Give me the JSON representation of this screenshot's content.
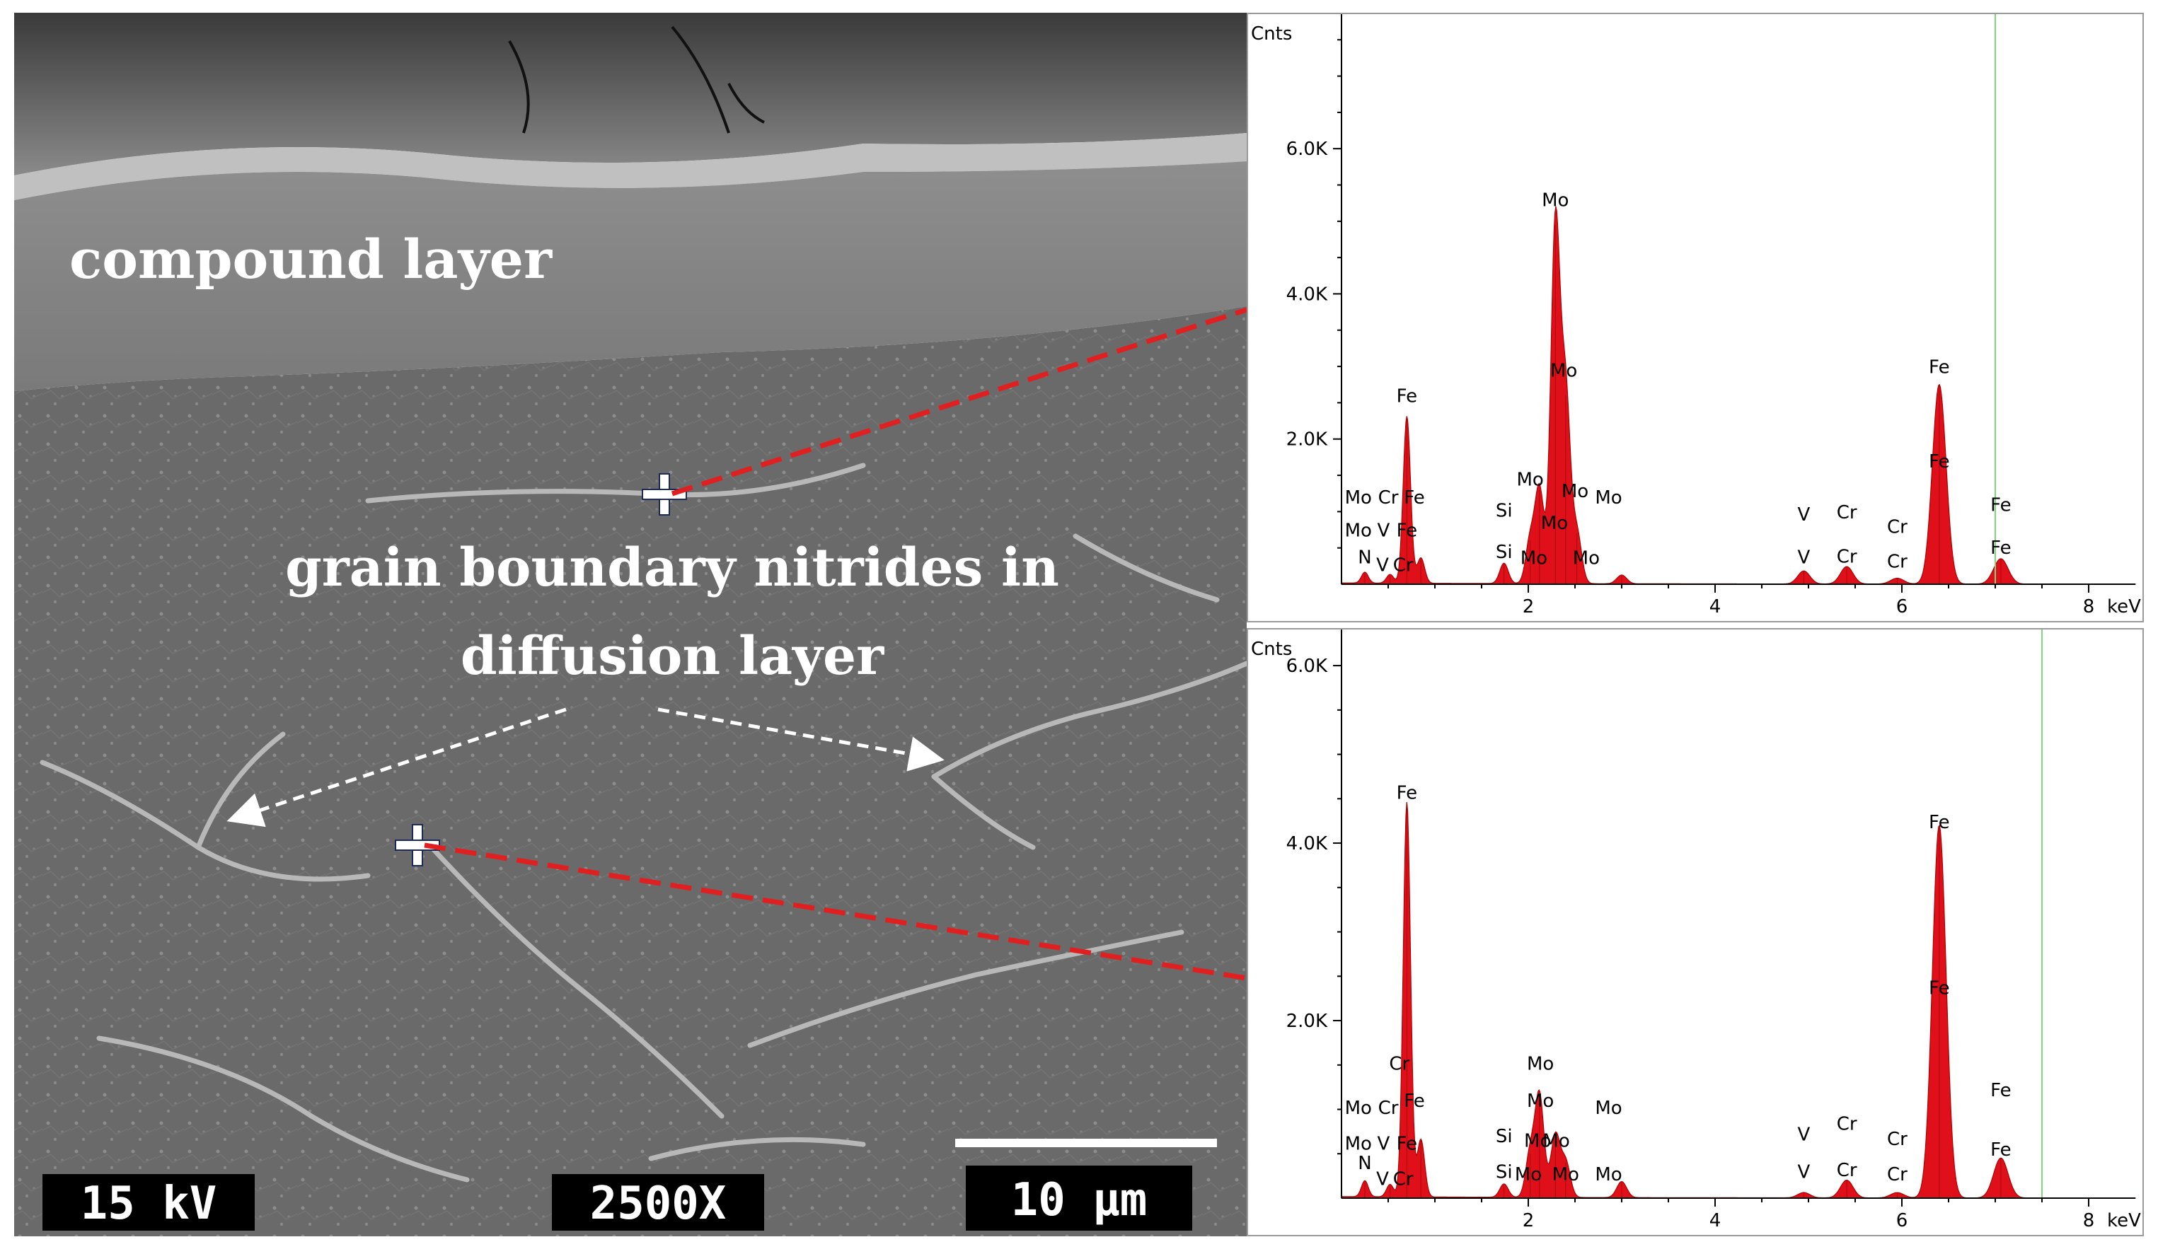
{
  "sem_image": {
    "labels": {
      "compound_layer": "compound layer",
      "grain_boundary_line1": "grain boundary nitrides in",
      "grain_boundary_line2": "diffusion layer"
    },
    "info_bar": {
      "voltage": "15 kV",
      "magnification": "2500X",
      "scale_bar": "10 µm"
    }
  },
  "colors": {
    "spectrum_fill": "#e0101a",
    "marker_line": "#e02020",
    "cursor_line": "#7fd67f",
    "arrow": "#ffffff"
  },
  "chart_data": [
    {
      "type": "area",
      "ylabel": "Cnts",
      "xlabel": "keV",
      "xlim": [
        0,
        8.5
      ],
      "ylim": [
        0,
        7600
      ],
      "x_ticks": [
        "2",
        "4",
        "6",
        "8"
      ],
      "y_ticks": [
        "2.0K",
        "4.0K",
        "6.0K"
      ],
      "cursor_x": 7.0,
      "peaks": [
        {
          "x": 0.25,
          "y": 150
        },
        {
          "x": 0.52,
          "y": 120
        },
        {
          "x": 0.7,
          "y": 2300
        },
        {
          "x": 0.85,
          "y": 350
        },
        {
          "x": 1.74,
          "y": 280
        },
        {
          "x": 2.02,
          "y": 600
        },
        {
          "x": 2.12,
          "y": 1300
        },
        {
          "x": 2.29,
          "y": 4950
        },
        {
          "x": 2.4,
          "y": 2600
        },
        {
          "x": 2.52,
          "y": 700
        },
        {
          "x": 3.0,
          "y": 120
        },
        {
          "x": 4.95,
          "y": 180
        },
        {
          "x": 5.41,
          "y": 240
        },
        {
          "x": 5.95,
          "y": 80
        },
        {
          "x": 6.4,
          "y": 2750
        },
        {
          "x": 7.06,
          "y": 350
        }
      ],
      "peak_labels": [
        {
          "text": "Mo",
          "x": 2.29,
          "y": 5150
        },
        {
          "text": "Mo",
          "x": 2.38,
          "y": 2800
        },
        {
          "text": "Fe",
          "x": 0.7,
          "y": 2450
        },
        {
          "text": "Fe",
          "x": 6.4,
          "y": 2850
        },
        {
          "text": "Fe",
          "x": 6.4,
          "y": 1550
        },
        {
          "text": "Mo",
          "x": 0.18,
          "y": 1050
        },
        {
          "text": "Cr",
          "x": 0.5,
          "y": 1050
        },
        {
          "text": "Fe",
          "x": 0.78,
          "y": 1050
        },
        {
          "text": "Mo",
          "x": 0.18,
          "y": 600
        },
        {
          "text": "V",
          "x": 0.45,
          "y": 600
        },
        {
          "text": "Fe",
          "x": 0.7,
          "y": 600
        },
        {
          "text": "N",
          "x": 0.25,
          "y": 230
        },
        {
          "text": "V",
          "x": 0.44,
          "y": 120
        },
        {
          "text": "Cr",
          "x": 0.66,
          "y": 120
        },
        {
          "text": "Mo",
          "x": 2.02,
          "y": 1300
        },
        {
          "text": "Mo",
          "x": 2.5,
          "y": 1140
        },
        {
          "text": "Mo",
          "x": 2.86,
          "y": 1050
        },
        {
          "text": "Si",
          "x": 1.74,
          "y": 870
        },
        {
          "text": "Mo",
          "x": 2.28,
          "y": 700
        },
        {
          "text": "Si",
          "x": 1.74,
          "y": 300
        },
        {
          "text": "Mo",
          "x": 2.06,
          "y": 220
        },
        {
          "text": "Mo",
          "x": 2.62,
          "y": 220
        },
        {
          "text": "V",
          "x": 4.95,
          "y": 820
        },
        {
          "text": "Cr",
          "x": 5.41,
          "y": 850
        },
        {
          "text": "Cr",
          "x": 5.95,
          "y": 650
        },
        {
          "text": "V",
          "x": 4.95,
          "y": 230
        },
        {
          "text": "Cr",
          "x": 5.41,
          "y": 240
        },
        {
          "text": "Cr",
          "x": 5.95,
          "y": 170
        },
        {
          "text": "Fe",
          "x": 7.06,
          "y": 950
        },
        {
          "text": "Fe",
          "x": 7.06,
          "y": 360
        }
      ]
    },
    {
      "type": "area",
      "ylabel": "Cnts",
      "xlabel": "keV",
      "xlim": [
        0,
        8.5
      ],
      "ylim": [
        0,
        6200
      ],
      "x_ticks": [
        "2",
        "4",
        "6",
        "8"
      ],
      "y_ticks": [
        "2.0K",
        "4.0K",
        "6.0K"
      ],
      "cursor_x": 7.5,
      "peaks": [
        {
          "x": 0.25,
          "y": 180
        },
        {
          "x": 0.52,
          "y": 140
        },
        {
          "x": 0.7,
          "y": 4450
        },
        {
          "x": 0.85,
          "y": 650
        },
        {
          "x": 1.74,
          "y": 150
        },
        {
          "x": 2.02,
          "y": 500
        },
        {
          "x": 2.12,
          "y": 1150
        },
        {
          "x": 2.29,
          "y": 700
        },
        {
          "x": 2.4,
          "y": 400
        },
        {
          "x": 3.0,
          "y": 180
        },
        {
          "x": 4.95,
          "y": 60
        },
        {
          "x": 5.41,
          "y": 200
        },
        {
          "x": 5.95,
          "y": 60
        },
        {
          "x": 6.4,
          "y": 4200
        },
        {
          "x": 7.06,
          "y": 450
        }
      ],
      "peak_labels": [
        {
          "text": "Fe",
          "x": 0.7,
          "y": 4450
        },
        {
          "text": "Fe",
          "x": 6.4,
          "y": 4120
        },
        {
          "text": "Fe",
          "x": 6.4,
          "y": 2250
        },
        {
          "text": "Cr",
          "x": 0.62,
          "y": 1400
        },
        {
          "text": "Mo",
          "x": 2.13,
          "y": 1400
        },
        {
          "text": "Fe",
          "x": 7.06,
          "y": 1100
        },
        {
          "text": "Mo",
          "x": 0.18,
          "y": 900
        },
        {
          "text": "Cr",
          "x": 0.5,
          "y": 900
        },
        {
          "text": "Fe",
          "x": 0.78,
          "y": 980
        },
        {
          "text": "Mo",
          "x": 2.13,
          "y": 980
        },
        {
          "text": "Mo",
          "x": 2.86,
          "y": 900
        },
        {
          "text": "Cr",
          "x": 5.41,
          "y": 720
        },
        {
          "text": "Mo",
          "x": 0.18,
          "y": 500
        },
        {
          "text": "V",
          "x": 0.45,
          "y": 500
        },
        {
          "text": "Fe",
          "x": 0.7,
          "y": 500
        },
        {
          "text": "Si",
          "x": 1.74,
          "y": 580
        },
        {
          "text": "Mo",
          "x": 2.1,
          "y": 530
        },
        {
          "text": "Mo",
          "x": 2.3,
          "y": 530
        },
        {
          "text": "V",
          "x": 4.95,
          "y": 600
        },
        {
          "text": "Cr",
          "x": 5.95,
          "y": 550
        },
        {
          "text": "Fe",
          "x": 7.06,
          "y": 430
        },
        {
          "text": "N",
          "x": 0.25,
          "y": 280
        },
        {
          "text": "V",
          "x": 0.44,
          "y": 100
        },
        {
          "text": "Cr",
          "x": 0.66,
          "y": 100
        },
        {
          "text": "Si",
          "x": 1.74,
          "y": 180
        },
        {
          "text": "Mo",
          "x": 2.0,
          "y": 150
        },
        {
          "text": "Mo",
          "x": 2.4,
          "y": 150
        },
        {
          "text": "Mo",
          "x": 2.86,
          "y": 150
        },
        {
          "text": "V",
          "x": 4.95,
          "y": 180
        },
        {
          "text": "Cr",
          "x": 5.41,
          "y": 200
        },
        {
          "text": "Cr",
          "x": 5.95,
          "y": 150
        }
      ]
    }
  ]
}
